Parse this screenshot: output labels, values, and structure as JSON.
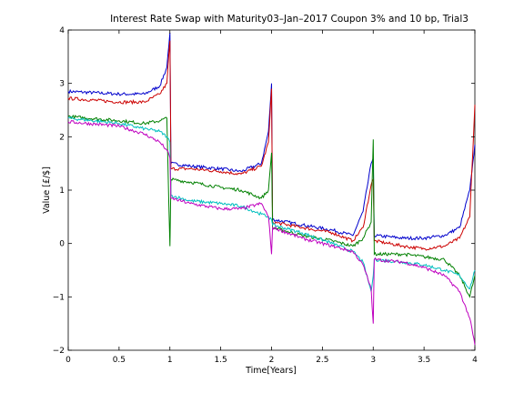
{
  "chart_data": {
    "type": "line",
    "title": "Interest Rate Swap with Maturity03–Jan–2017 Coupon 3% and 10 bp, Trial3",
    "xlabel": "Time[Years]",
    "ylabel": "Value [£/$]",
    "xlim": [
      0,
      4
    ],
    "ylim": [
      -2,
      4
    ],
    "xticks": [
      "0",
      "0.5",
      "1",
      "1.5",
      "2",
      "2.5",
      "3",
      "3.5",
      "4"
    ],
    "yticks": [
      "−2",
      "−1",
      "0",
      "1",
      "2",
      "3",
      "4"
    ],
    "grid": false,
    "series": [
      {
        "color": "#0000cc",
        "x": [
          0,
          0.5,
          0.75,
          0.9,
          0.97,
          1.0,
          1.01,
          1.2,
          1.5,
          1.7,
          1.9,
          1.97,
          2.0,
          2.01,
          2.3,
          2.6,
          2.8,
          2.9,
          2.98,
          3.0,
          3.01,
          3.3,
          3.5,
          3.7,
          3.85,
          3.95,
          4.0
        ],
        "y": [
          2.85,
          2.8,
          2.8,
          2.95,
          3.3,
          3.95,
          1.5,
          1.45,
          1.4,
          1.35,
          1.5,
          2.1,
          3.0,
          0.45,
          0.35,
          0.25,
          0.15,
          0.6,
          1.5,
          1.6,
          0.15,
          0.1,
          0.1,
          0.15,
          0.3,
          1.0,
          1.85
        ]
      },
      {
        "color": "#cc0000",
        "x": [
          0,
          0.5,
          0.75,
          0.9,
          0.97,
          1.0,
          1.01,
          1.2,
          1.5,
          1.7,
          1.9,
          1.97,
          2.0,
          2.01,
          2.3,
          2.6,
          2.8,
          2.9,
          2.98,
          3.0,
          3.01,
          3.3,
          3.5,
          3.7,
          3.85,
          3.95,
          4.0
        ],
        "y": [
          2.72,
          2.65,
          2.65,
          2.8,
          3.0,
          3.8,
          1.4,
          1.4,
          1.35,
          1.3,
          1.45,
          1.9,
          2.9,
          0.4,
          0.3,
          0.2,
          0.05,
          0.3,
          1.1,
          1.2,
          0.05,
          -0.05,
          -0.1,
          -0.05,
          0.1,
          0.5,
          2.6
        ]
      },
      {
        "color": "#008000",
        "x": [
          0,
          0.5,
          0.75,
          0.9,
          0.97,
          1.0,
          1.01,
          1.2,
          1.5,
          1.7,
          1.9,
          1.97,
          2.0,
          2.01,
          2.3,
          2.6,
          2.8,
          2.9,
          2.98,
          3.0,
          3.01,
          3.3,
          3.5,
          3.7,
          3.85,
          3.95,
          4.0
        ],
        "y": [
          2.38,
          2.3,
          2.25,
          2.3,
          2.35,
          -0.05,
          1.2,
          1.15,
          1.05,
          1.0,
          0.85,
          1.0,
          1.7,
          0.3,
          0.15,
          0.05,
          -0.05,
          0.1,
          0.4,
          1.95,
          -0.2,
          -0.2,
          -0.25,
          -0.3,
          -0.6,
          -1.0,
          -0.6
        ]
      },
      {
        "color": "#00bfbf",
        "x": [
          0,
          0.5,
          0.75,
          0.9,
          0.97,
          1.0,
          1.01,
          1.2,
          1.5,
          1.7,
          1.9,
          1.97,
          2.0,
          2.01,
          2.3,
          2.6,
          2.8,
          2.9,
          2.98,
          3.0,
          3.01,
          3.3,
          3.5,
          3.7,
          3.85,
          3.95,
          4.0
        ],
        "y": [
          2.35,
          2.25,
          2.15,
          2.1,
          2.0,
          1.9,
          0.9,
          0.8,
          0.75,
          0.7,
          0.55,
          0.5,
          0.45,
          0.35,
          0.2,
          0.0,
          -0.15,
          -0.35,
          -0.9,
          -0.6,
          -0.3,
          -0.35,
          -0.4,
          -0.5,
          -0.6,
          -0.85,
          -0.5
        ]
      },
      {
        "color": "#bf00bf",
        "x": [
          0,
          0.5,
          0.75,
          0.9,
          0.97,
          1.0,
          1.01,
          1.2,
          1.5,
          1.7,
          1.9,
          1.97,
          2.0,
          2.01,
          2.3,
          2.6,
          2.8,
          2.9,
          2.98,
          3.0,
          3.01,
          3.3,
          3.5,
          3.7,
          3.85,
          3.95,
          4.0
        ],
        "y": [
          2.28,
          2.2,
          2.05,
          1.9,
          1.75,
          1.6,
          0.85,
          0.75,
          0.65,
          0.65,
          0.75,
          0.5,
          -0.2,
          0.3,
          0.1,
          -0.05,
          -0.15,
          -0.4,
          -0.85,
          -1.5,
          -0.3,
          -0.35,
          -0.45,
          -0.6,
          -0.9,
          -1.4,
          -1.9
        ]
      }
    ]
  }
}
